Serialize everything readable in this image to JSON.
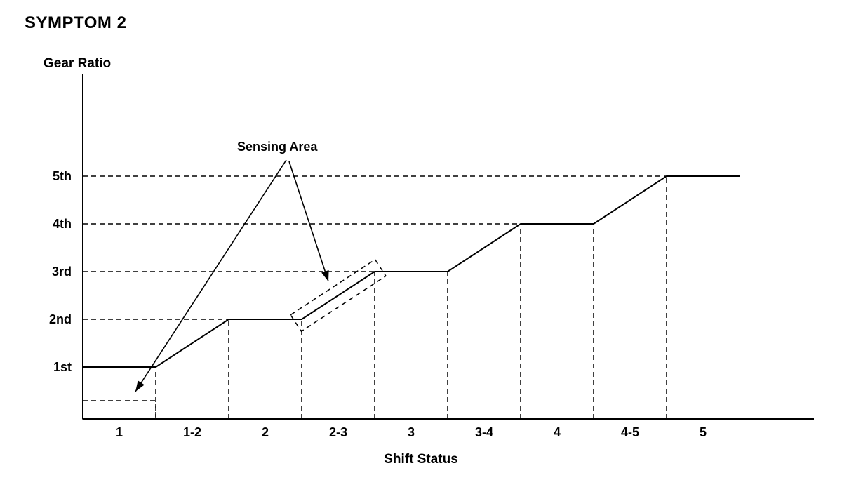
{
  "chart_data": {
    "type": "line",
    "title": "SYMPTOM 2",
    "xlabel": "Shift Status",
    "ylabel": "Gear Ratio",
    "x_categories": [
      "1",
      "1-2",
      "2",
      "2-3",
      "3",
      "3-4",
      "4",
      "4-5",
      "5"
    ],
    "y_tick_labels": [
      "1st",
      "2nd",
      "3rd",
      "4th",
      "5th"
    ],
    "trace_units": [
      [
        0,
        1
      ],
      [
        1,
        1
      ],
      [
        2,
        2
      ],
      [
        3,
        2
      ],
      [
        4,
        3
      ],
      [
        5,
        3
      ],
      [
        6,
        4
      ],
      [
        7,
        4
      ],
      [
        8,
        5
      ],
      [
        9,
        5
      ]
    ],
    "annotation": {
      "label": "Sensing Area",
      "targets": [
        "dashed box below 1st gear at start of 1-2 shift",
        "dashed box around the 2-3 upshift ramp"
      ]
    },
    "style": {
      "line_color": "#000000",
      "background": "#ffffff",
      "gridlines": "dashed"
    }
  }
}
